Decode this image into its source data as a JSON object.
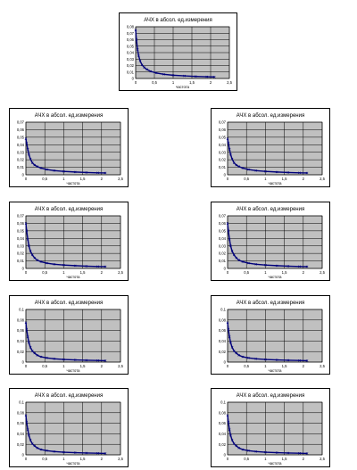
{
  "colors": {
    "plot_bg": "#c0c0c0",
    "grid": "#000000",
    "series": "#00007a",
    "frame": "#000000"
  },
  "chart_data": [
    {
      "type": "line",
      "title": "АЧХ в абсол. ед.измерения",
      "xlabel": "частота",
      "ylabel": "",
      "x_ticks": [
        "0",
        "0,5",
        "1",
        "1,5",
        "2",
        "2,5"
      ],
      "y_ticks": [
        "0",
        "0,01",
        "0,02",
        "0,03",
        "0,04",
        "0,05",
        "0,06",
        "0,07",
        "0,08"
      ],
      "xlim": [
        0,
        2.5
      ],
      "ylim": [
        0,
        0.08
      ],
      "grid": true,
      "marker": "x",
      "series": [
        {
          "x": [
            0.0,
            0.02,
            0.05,
            0.08,
            0.12,
            0.17,
            0.23,
            0.3,
            0.4,
            0.55,
            0.75,
            1.0,
            1.3,
            1.6,
            1.9,
            2.1
          ],
          "y": [
            0.075,
            0.06,
            0.045,
            0.035,
            0.027,
            0.021,
            0.017,
            0.014,
            0.011,
            0.0085,
            0.0065,
            0.005,
            0.004,
            0.0032,
            0.0027,
            0.0024
          ]
        }
      ]
    },
    {
      "type": "line",
      "title": "АЧХ в абсол. ед.измерения",
      "xlabel": "частота",
      "ylabel": "",
      "x_ticks": [
        "0",
        "0,5",
        "1",
        "1,5",
        "2",
        "2,5"
      ],
      "y_ticks": [
        "0",
        "0,01",
        "0,02",
        "0,03",
        "0,04",
        "0,05",
        "0,06",
        "0,07"
      ],
      "xlim": [
        0,
        2.5
      ],
      "ylim": [
        0,
        0.07
      ],
      "grid": true,
      "marker": "x",
      "series": [
        {
          "x": [
            0.0,
            0.02,
            0.05,
            0.08,
            0.12,
            0.17,
            0.23,
            0.3,
            0.4,
            0.55,
            0.75,
            1.0,
            1.3,
            1.6,
            1.9,
            2.1
          ],
          "y": [
            0.048,
            0.042,
            0.034,
            0.027,
            0.021,
            0.016,
            0.013,
            0.011,
            0.009,
            0.007,
            0.0055,
            0.0045,
            0.0037,
            0.003,
            0.0026,
            0.0024
          ]
        }
      ]
    },
    {
      "type": "line",
      "title": "АЧХ в абсол. ед.измерения",
      "xlabel": "частота",
      "ylabel": "",
      "x_ticks": [
        "0",
        "0,5",
        "1",
        "1,5",
        "2",
        "2,5"
      ],
      "y_ticks": [
        "0",
        "0,01",
        "0,02",
        "0,03",
        "0,04",
        "0,05",
        "0,06",
        "0,07"
      ],
      "xlim": [
        0,
        2.5
      ],
      "ylim": [
        0,
        0.07
      ],
      "grid": true,
      "marker": "x",
      "series": [
        {
          "x": [
            0.0,
            0.02,
            0.05,
            0.08,
            0.12,
            0.17,
            0.23,
            0.3,
            0.4,
            0.55,
            0.75,
            1.0,
            1.3,
            1.6,
            1.9,
            2.1
          ],
          "y": [
            0.048,
            0.042,
            0.034,
            0.027,
            0.021,
            0.016,
            0.013,
            0.011,
            0.009,
            0.007,
            0.0055,
            0.0045,
            0.0037,
            0.003,
            0.0026,
            0.0024
          ]
        }
      ]
    },
    {
      "type": "line",
      "title": "АЧХ в абсол. ед.измерения",
      "xlabel": "частота",
      "ylabel": "",
      "x_ticks": [
        "0",
        "0,5",
        "1",
        "1,5",
        "2",
        "2,5"
      ],
      "y_ticks": [
        "0",
        "0,01",
        "0,02",
        "0,03",
        "0,04",
        "0,05",
        "0,06",
        "0,07"
      ],
      "xlim": [
        0,
        2.5
      ],
      "ylim": [
        0,
        0.07
      ],
      "grid": true,
      "marker": "x",
      "series": [
        {
          "x": [
            0.0,
            0.02,
            0.05,
            0.08,
            0.12,
            0.17,
            0.23,
            0.3,
            0.4,
            0.55,
            0.75,
            1.0,
            1.3,
            1.6,
            1.9,
            2.1
          ],
          "y": [
            0.06,
            0.05,
            0.039,
            0.03,
            0.023,
            0.018,
            0.014,
            0.011,
            0.009,
            0.007,
            0.0055,
            0.0045,
            0.0037,
            0.003,
            0.0026,
            0.0024
          ]
        }
      ]
    },
    {
      "type": "line",
      "title": "АЧХ в абсол. ед.измерения",
      "xlabel": "частота",
      "ylabel": "",
      "x_ticks": [
        "0",
        "0,5",
        "1",
        "1,5",
        "2",
        "2,5"
      ],
      "y_ticks": [
        "0",
        "0,01",
        "0,02",
        "0,03",
        "0,04",
        "0,05",
        "0,06",
        "0,07"
      ],
      "xlim": [
        0,
        2.5
      ],
      "ylim": [
        0,
        0.07
      ],
      "grid": true,
      "marker": "x",
      "series": [
        {
          "x": [
            0.0,
            0.02,
            0.05,
            0.08,
            0.12,
            0.17,
            0.23,
            0.3,
            0.4,
            0.55,
            0.75,
            1.0,
            1.3,
            1.6,
            1.9,
            2.1
          ],
          "y": [
            0.06,
            0.05,
            0.039,
            0.03,
            0.023,
            0.018,
            0.014,
            0.011,
            0.009,
            0.007,
            0.0055,
            0.0045,
            0.0037,
            0.003,
            0.0026,
            0.0024
          ]
        }
      ]
    },
    {
      "type": "line",
      "title": "АЧХ в абсол. ед.измерения",
      "xlabel": "частота",
      "ylabel": "",
      "x_ticks": [
        "0",
        "0,5",
        "1",
        "1,5",
        "2",
        "2,5"
      ],
      "y_ticks": [
        "0",
        "0,02",
        "0,04",
        "0,06",
        "0,08",
        "0,1"
      ],
      "xlim": [
        0,
        2.5
      ],
      "ylim": [
        0,
        0.1
      ],
      "grid": true,
      "marker": "x",
      "series": [
        {
          "x": [
            0.0,
            0.02,
            0.05,
            0.08,
            0.12,
            0.17,
            0.23,
            0.3,
            0.4,
            0.55,
            0.75,
            1.0,
            1.3,
            1.6,
            1.9,
            2.1
          ],
          "y": [
            0.075,
            0.062,
            0.048,
            0.037,
            0.028,
            0.021,
            0.017,
            0.013,
            0.01,
            0.008,
            0.0062,
            0.005,
            0.0042,
            0.0035,
            0.003,
            0.0027
          ]
        }
      ]
    },
    {
      "type": "line",
      "title": "АЧХ в абсол. ед.измерения",
      "xlabel": "частота",
      "ylabel": "",
      "x_ticks": [
        "0",
        "0,5",
        "1",
        "1,5",
        "2",
        "2,5"
      ],
      "y_ticks": [
        "0",
        "0,02",
        "0,04",
        "0,06",
        "0,08",
        "0,1"
      ],
      "xlim": [
        0,
        2.5
      ],
      "ylim": [
        0,
        0.1
      ],
      "grid": true,
      "marker": "x",
      "series": [
        {
          "x": [
            0.0,
            0.02,
            0.05,
            0.08,
            0.12,
            0.17,
            0.23,
            0.3,
            0.4,
            0.55,
            0.75,
            1.0,
            1.3,
            1.6,
            1.9,
            2.1
          ],
          "y": [
            0.075,
            0.062,
            0.048,
            0.037,
            0.028,
            0.021,
            0.017,
            0.013,
            0.01,
            0.008,
            0.0062,
            0.005,
            0.0042,
            0.0035,
            0.003,
            0.0027
          ]
        }
      ]
    },
    {
      "type": "line",
      "title": "АЧХ в абсол. ед.измерения",
      "xlabel": "частота",
      "ylabel": "",
      "x_ticks": [
        "0",
        "0,5",
        "1",
        "1,5",
        "2",
        "2,5"
      ],
      "y_ticks": [
        "0",
        "0,02",
        "0,04",
        "0,06",
        "0,08",
        "0,1"
      ],
      "xlim": [
        0,
        2.5
      ],
      "ylim": [
        0,
        0.1
      ],
      "grid": true,
      "marker": "x",
      "series": [
        {
          "x": [
            0.0,
            0.02,
            0.05,
            0.08,
            0.12,
            0.17,
            0.23,
            0.3,
            0.4,
            0.55,
            0.75,
            1.0,
            1.3,
            1.6,
            1.9,
            2.1
          ],
          "y": [
            0.075,
            0.062,
            0.048,
            0.037,
            0.028,
            0.021,
            0.017,
            0.013,
            0.01,
            0.008,
            0.0062,
            0.005,
            0.0042,
            0.0035,
            0.003,
            0.0027
          ]
        }
      ]
    },
    {
      "type": "line",
      "title": "АЧХ в абсол. ед.измерения",
      "xlabel": "частота",
      "ylabel": "",
      "x_ticks": [
        "0",
        "0,5",
        "1",
        "1,5",
        "2",
        "2,5"
      ],
      "y_ticks": [
        "0",
        "0,02",
        "0,04",
        "0,06",
        "0,08",
        "0,1"
      ],
      "xlim": [
        0,
        2.5
      ],
      "ylim": [
        0,
        0.1
      ],
      "grid": true,
      "marker": "x",
      "series": [
        {
          "x": [
            0.0,
            0.02,
            0.05,
            0.08,
            0.12,
            0.17,
            0.23,
            0.3,
            0.4,
            0.55,
            0.75,
            1.0,
            1.3,
            1.6,
            1.9,
            2.1
          ],
          "y": [
            0.075,
            0.062,
            0.048,
            0.037,
            0.028,
            0.021,
            0.017,
            0.013,
            0.01,
            0.008,
            0.0062,
            0.005,
            0.0042,
            0.0035,
            0.003,
            0.0027
          ]
        }
      ]
    }
  ]
}
